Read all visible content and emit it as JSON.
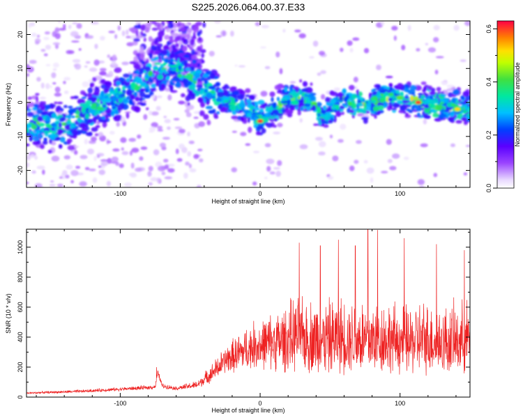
{
  "title": "S225.2026.064.00.37.E33",
  "chart_data": [
    {
      "type": "heatmap",
      "title": "S225.2026.064.00.37.E33",
      "xlabel": "Height of straight line (km)",
      "ylabel": "Frequency (Hz)",
      "xlim": [
        -167,
        150
      ],
      "ylim": [
        -25,
        24
      ],
      "xticks": [
        -100,
        0,
        100
      ],
      "yticks": [
        -20,
        -10,
        0,
        10,
        20
      ],
      "colorbar": {
        "label": "Normalized spectral amplitude",
        "range": [
          0,
          0.63
        ],
        "ticks": [
          0.0,
          0.2,
          0.4,
          0.6
        ],
        "tick_labels": [
          "0.0",
          "0.2",
          "0.4",
          "0.6"
        ]
      },
      "ridge_center": [
        {
          "x": -160,
          "y": -6
        },
        {
          "x": -140,
          "y": -7
        },
        {
          "x": -120,
          "y": -2
        },
        {
          "x": -100,
          "y": 2
        },
        {
          "x": -85,
          "y": 5
        },
        {
          "x": -75,
          "y": 9
        },
        {
          "x": -65,
          "y": 11
        },
        {
          "x": -50,
          "y": 7
        },
        {
          "x": -35,
          "y": 3
        },
        {
          "x": -20,
          "y": 0
        },
        {
          "x": -5,
          "y": -3
        },
        {
          "x": 0,
          "y": -5
        },
        {
          "x": 10,
          "y": -2
        },
        {
          "x": 20,
          "y": 1
        },
        {
          "x": 35,
          "y": 1
        },
        {
          "x": 45,
          "y": -4
        },
        {
          "x": 60,
          "y": 1
        },
        {
          "x": 75,
          "y": -1
        },
        {
          "x": 90,
          "y": 2
        },
        {
          "x": 110,
          "y": 1
        },
        {
          "x": 130,
          "y": -1
        },
        {
          "x": 150,
          "y": -2
        }
      ],
      "peaks": [
        {
          "x": 0,
          "y": -5.5,
          "value": 0.62
        },
        {
          "x": 113,
          "y": 0,
          "value": 0.6
        },
        {
          "x": 141,
          "y": -2,
          "value": 0.52
        }
      ]
    },
    {
      "type": "line",
      "xlabel": "Height of straight line (km)",
      "ylabel": "SNR (10 * v/v)",
      "xlim": [
        -167,
        150
      ],
      "ylim": [
        0,
        1120
      ],
      "xticks": [
        -100,
        0,
        100
      ],
      "yticks": [
        0,
        200,
        400,
        600,
        800,
        1000
      ],
      "color": "#ee2222",
      "series": [
        {
          "name": "SNR",
          "x": [
            -167,
            -150,
            -130,
            -110,
            -90,
            -80,
            -75,
            -73,
            -70,
            -60,
            -45,
            -35,
            -25,
            -15,
            -5,
            5,
            15,
            25,
            35,
            45,
            55,
            65,
            75,
            85,
            95,
            105,
            115,
            125,
            135,
            145,
            150
          ],
          "base": [
            25,
            30,
            35,
            45,
            55,
            60,
            65,
            160,
            70,
            55,
            75,
            140,
            220,
            260,
            300,
            310,
            320,
            340,
            330,
            320,
            330,
            340,
            320,
            330,
            320,
            310,
            320,
            320,
            310,
            320,
            330
          ],
          "amp": [
            10,
            12,
            15,
            18,
            20,
            22,
            25,
            30,
            25,
            20,
            40,
            90,
            140,
            200,
            240,
            280,
            330,
            380,
            380,
            380,
            400,
            390,
            410,
            380,
            360,
            360,
            380,
            360,
            360,
            370,
            380
          ]
        }
      ],
      "spikes": [
        {
          "x": -74,
          "y": 200
        },
        {
          "x": 28,
          "y": 1030
        },
        {
          "x": 43,
          "y": 1010
        },
        {
          "x": 56,
          "y": 1050
        },
        {
          "x": 68,
          "y": 1010
        },
        {
          "x": 77,
          "y": 1120
        },
        {
          "x": 84,
          "y": 1115
        },
        {
          "x": 103,
          "y": 1060
        },
        {
          "x": 126,
          "y": 1020
        },
        {
          "x": 146,
          "y": 980
        }
      ]
    }
  ]
}
